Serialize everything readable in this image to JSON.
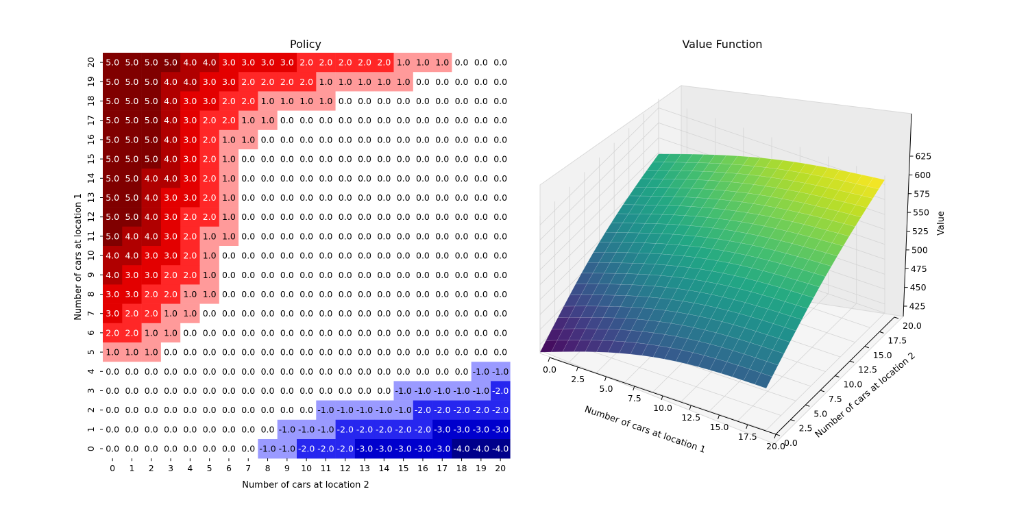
{
  "chart_data": [
    {
      "type": "heatmap",
      "title": "Policy",
      "xlabel": "Number of cars at location 2",
      "ylabel": "Number of cars at location 1",
      "x_ticks": [
        "0",
        "1",
        "2",
        "3",
        "4",
        "5",
        "6",
        "7",
        "8",
        "9",
        "10",
        "11",
        "12",
        "13",
        "14",
        "15",
        "16",
        "17",
        "18",
        "19",
        "20"
      ],
      "y_ticks": [
        "0",
        "1",
        "2",
        "3",
        "4",
        "5",
        "6",
        "7",
        "8",
        "9",
        "10",
        "11",
        "12",
        "13",
        "14",
        "15",
        "16",
        "17",
        "18",
        "19",
        "20"
      ],
      "colormap": {
        "-5": "#00004c",
        "-4": "#00008b",
        "-3": "#0000cd",
        "-2": "#2727ef",
        "-1": "#9a9aff",
        "0": "#ffffff",
        "1": "#ff9a9a",
        "2": "#ff2727",
        "3": "#e30000",
        "4": "#b00000",
        "5": "#800000"
      },
      "rows_top_to_bottom": [
        {
          "y": "20",
          "values": [
            5,
            5,
            5,
            5,
            4,
            4,
            3,
            3,
            3,
            3,
            2,
            2,
            2,
            2,
            2,
            1,
            1,
            1,
            0,
            0,
            0
          ]
        },
        {
          "y": "19",
          "values": [
            5,
            5,
            5,
            4,
            4,
            3,
            3,
            2,
            2,
            2,
            2,
            1,
            1,
            1,
            1,
            1,
            0,
            0,
            0,
            0,
            0
          ]
        },
        {
          "y": "18",
          "values": [
            5,
            5,
            5,
            4,
            3,
            3,
            2,
            2,
            1,
            1,
            1,
            1,
            0,
            0,
            0,
            0,
            0,
            0,
            0,
            0,
            0
          ]
        },
        {
          "y": "17",
          "values": [
            5,
            5,
            5,
            4,
            3,
            2,
            2,
            1,
            1,
            0,
            0,
            0,
            0,
            0,
            0,
            0,
            0,
            0,
            0,
            0,
            0
          ]
        },
        {
          "y": "16",
          "values": [
            5,
            5,
            5,
            4,
            3,
            2,
            1,
            1,
            0,
            0,
            0,
            0,
            0,
            0,
            0,
            0,
            0,
            0,
            0,
            0,
            0
          ]
        },
        {
          "y": "15",
          "values": [
            5,
            5,
            5,
            4,
            3,
            2,
            1,
            0,
            0,
            0,
            0,
            0,
            0,
            0,
            0,
            0,
            0,
            0,
            0,
            0,
            0
          ]
        },
        {
          "y": "14",
          "values": [
            5,
            5,
            4,
            4,
            3,
            2,
            1,
            0,
            0,
            0,
            0,
            0,
            0,
            0,
            0,
            0,
            0,
            0,
            0,
            0,
            0
          ]
        },
        {
          "y": "13",
          "values": [
            5,
            5,
            4,
            3,
            3,
            2,
            1,
            0,
            0,
            0,
            0,
            0,
            0,
            0,
            0,
            0,
            0,
            0,
            0,
            0,
            0
          ]
        },
        {
          "y": "12",
          "values": [
            5,
            5,
            4,
            3,
            2,
            2,
            1,
            0,
            0,
            0,
            0,
            0,
            0,
            0,
            0,
            0,
            0,
            0,
            0,
            0,
            0
          ]
        },
        {
          "y": "11",
          "values": [
            5,
            4,
            4,
            3,
            2,
            1,
            1,
            0,
            0,
            0,
            0,
            0,
            0,
            0,
            0,
            0,
            0,
            0,
            0,
            0,
            0
          ]
        },
        {
          "y": "10",
          "values": [
            4,
            4,
            3,
            3,
            2,
            1,
            0,
            0,
            0,
            0,
            0,
            0,
            0,
            0,
            0,
            0,
            0,
            0,
            0,
            0,
            0
          ]
        },
        {
          "y": "9",
          "values": [
            4,
            3,
            3,
            2,
            2,
            1,
            0,
            0,
            0,
            0,
            0,
            0,
            0,
            0,
            0,
            0,
            0,
            0,
            0,
            0,
            0
          ]
        },
        {
          "y": "8",
          "values": [
            3,
            3,
            2,
            2,
            1,
            1,
            0,
            0,
            0,
            0,
            0,
            0,
            0,
            0,
            0,
            0,
            0,
            0,
            0,
            0,
            0
          ]
        },
        {
          "y": "7",
          "values": [
            3,
            2,
            2,
            1,
            1,
            0,
            0,
            0,
            0,
            0,
            0,
            0,
            0,
            0,
            0,
            0,
            0,
            0,
            0,
            0,
            0
          ]
        },
        {
          "y": "6",
          "values": [
            2,
            2,
            1,
            1,
            0,
            0,
            0,
            0,
            0,
            0,
            0,
            0,
            0,
            0,
            0,
            0,
            0,
            0,
            0,
            0,
            0
          ]
        },
        {
          "y": "5",
          "values": [
            1,
            1,
            1,
            0,
            0,
            0,
            0,
            0,
            0,
            0,
            0,
            0,
            0,
            0,
            0,
            0,
            0,
            0,
            0,
            0,
            0
          ]
        },
        {
          "y": "4",
          "values": [
            0,
            0,
            0,
            0,
            0,
            0,
            0,
            0,
            0,
            0,
            0,
            0,
            0,
            0,
            0,
            0,
            0,
            0,
            0,
            -1,
            -1
          ]
        },
        {
          "y": "3",
          "values": [
            0,
            0,
            0,
            0,
            0,
            0,
            0,
            0,
            0,
            0,
            0,
            0,
            0,
            0,
            0,
            -1,
            -1,
            -1,
            -1,
            -1,
            -2
          ]
        },
        {
          "y": "2",
          "values": [
            0,
            0,
            0,
            0,
            0,
            0,
            0,
            0,
            0,
            0,
            0,
            -1,
            -1,
            -1,
            -1,
            -1,
            -2,
            -2,
            -2,
            -2,
            -2
          ]
        },
        {
          "y": "1",
          "values": [
            0,
            0,
            0,
            0,
            0,
            0,
            0,
            0,
            0,
            -1,
            -1,
            -1,
            -2,
            -2,
            -2,
            -2,
            -2,
            -3,
            -3,
            -3,
            -3
          ]
        },
        {
          "y": "0",
          "values": [
            0,
            0,
            0,
            0,
            0,
            0,
            0,
            0,
            -1,
            -1,
            -2,
            -2,
            -2,
            -3,
            -3,
            -3,
            -3,
            -3,
            -4,
            -4,
            -4
          ]
        }
      ]
    },
    {
      "type": "surface",
      "title": "Value Function",
      "xlabel": "Number of cars at location 1",
      "ylabel": "Number of cars at location 2",
      "zlabel": "Value",
      "x_ticks": [
        "0.0",
        "2.5",
        "5.0",
        "7.5",
        "10.0",
        "12.5",
        "15.0",
        "17.5",
        "20.0"
      ],
      "y_ticks": [
        "0.0",
        "2.5",
        "5.0",
        "7.5",
        "10.0",
        "12.5",
        "15.0",
        "17.5",
        "20.0"
      ],
      "z_ticks": [
        "425",
        "450",
        "475",
        "500",
        "525",
        "550",
        "575",
        "600",
        "625"
      ],
      "xlim": [
        0,
        20
      ],
      "ylim": [
        0,
        20
      ],
      "zlim": [
        410,
        640
      ],
      "grid": true,
      "colormap": "viridis",
      "value_function": {
        "description_points": [
          {
            "x": 0,
            "y": 0,
            "value": 412
          },
          {
            "x": 20,
            "y": 0,
            "value": 480
          },
          {
            "x": 0,
            "y": 20,
            "value": 548
          },
          {
            "x": 20,
            "y": 20,
            "value": 633
          }
        ]
      }
    }
  ]
}
